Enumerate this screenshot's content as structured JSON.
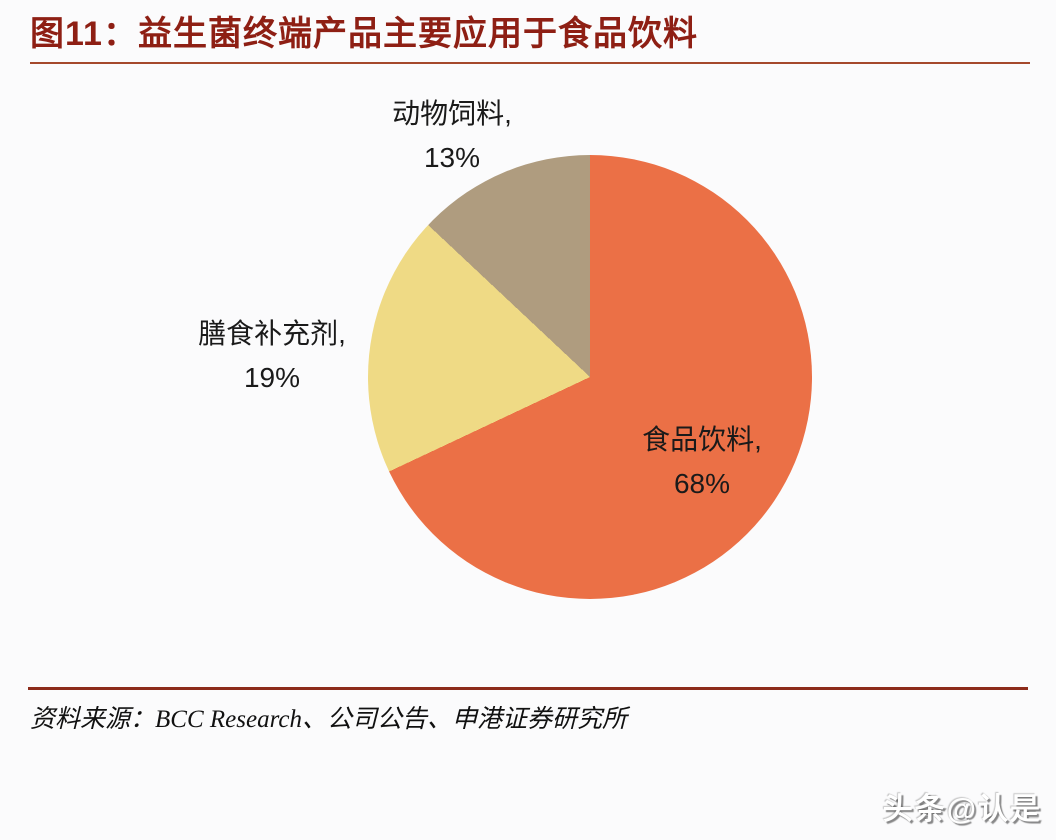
{
  "theme": {
    "title_color": "#8E1F14",
    "title_rule_color": "#A5492C",
    "footer_rule_color": "#8C2B1A",
    "label_color": "#1A1A1A",
    "bg_color": "#FBFBFC"
  },
  "figure": {
    "title": "图11：益生菌终端产品主要应用于食品饮料",
    "source": "资料来源：BCC Research、公司公告、申港证券研究所",
    "watermark": "头条@认是"
  },
  "chart_data": {
    "type": "pie",
    "title": "益生菌终端产品主要应用于食品饮料",
    "categories": [
      "食品饮料",
      "膳食补充剂",
      "动物饲料"
    ],
    "values": [
      68,
      19,
      13
    ],
    "unit": "%",
    "start_angle_deg": 0,
    "direction": "clockwise",
    "slice_colors": [
      "#EB7046",
      "#EFDA85",
      "#AF9C7F"
    ],
    "legend": "none",
    "labels": [
      {
        "category": "食品饮料",
        "name_line": "食品饮料,",
        "value_line": "68%",
        "placement": "inside-right"
      },
      {
        "category": "膳食补充剂",
        "name_line": "膳食补充剂,",
        "value_line": "19%",
        "placement": "outside-left"
      },
      {
        "category": "动物饲料",
        "name_line": "动物饲料,",
        "value_line": "13%",
        "placement": "outside-top"
      }
    ]
  }
}
